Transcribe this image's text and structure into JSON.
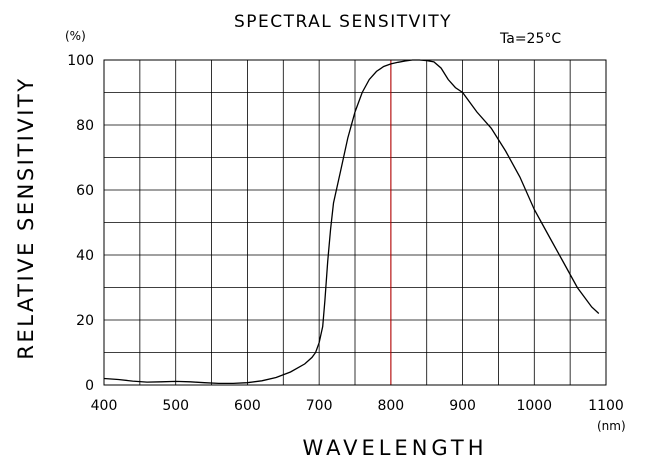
{
  "chart_data": {
    "type": "line",
    "title": "SPECTRAL SENSITVITY",
    "condition": "Ta=25°C",
    "xlabel": "WAVELENGTH",
    "ylabel": "RELATIVE SENSITIVITY",
    "x_unit": "(nm)",
    "y_unit": "(%)",
    "xlim": [
      400,
      1100
    ],
    "ylim": [
      0,
      100
    ],
    "x_ticks": [
      400,
      500,
      600,
      700,
      800,
      900,
      1000,
      1100
    ],
    "y_ticks": [
      0,
      20,
      40,
      60,
      80,
      100
    ],
    "grid": true,
    "reference_line_x": 800,
    "reference_line_color": "#c00000",
    "series": [
      {
        "color": "#000000",
        "x": [
          400,
          420,
          440,
          460,
          480,
          500,
          520,
          540,
          560,
          580,
          600,
          620,
          640,
          660,
          680,
          690,
          695,
          700,
          705,
          708,
          712,
          716,
          720,
          730,
          740,
          750,
          760,
          770,
          780,
          790,
          800,
          810,
          820,
          830,
          840,
          850,
          860,
          870,
          880,
          890,
          900,
          920,
          940,
          960,
          980,
          1000,
          1020,
          1040,
          1060,
          1080,
          1090
        ],
        "y": [
          2,
          1.7,
          1.2,
          0.9,
          1,
          1.1,
          1,
          0.7,
          0.5,
          0.5,
          0.7,
          1.3,
          2.3,
          4,
          6.5,
          8.5,
          10,
          13,
          18,
          26,
          38,
          48,
          56,
          66,
          76,
          84,
          90,
          94,
          96.5,
          98,
          98.8,
          99.3,
          99.7,
          100,
          100,
          99.8,
          99.4,
          97.5,
          94,
          91.5,
          90,
          84,
          79,
          72,
          64,
          54,
          46,
          38,
          30,
          24,
          22
        ]
      }
    ]
  }
}
